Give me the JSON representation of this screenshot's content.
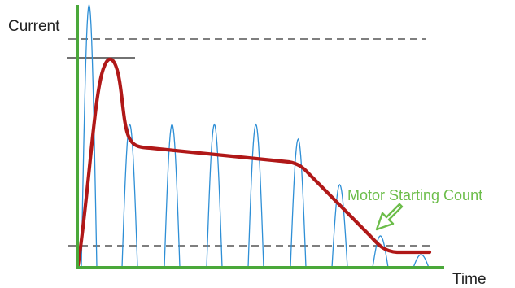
{
  "labels": {
    "y_axis": "Current",
    "x_axis": "Time",
    "annotation": "Motor Starting Count"
  },
  "colors": {
    "axis": "#4aa83a",
    "pulse_wave": "#2e8fd6",
    "current_curve": "#b01818",
    "dashed_line": "#555555",
    "peak_marker": "#444444",
    "annotation": "#6cbd4a",
    "text": "#222222"
  }
}
